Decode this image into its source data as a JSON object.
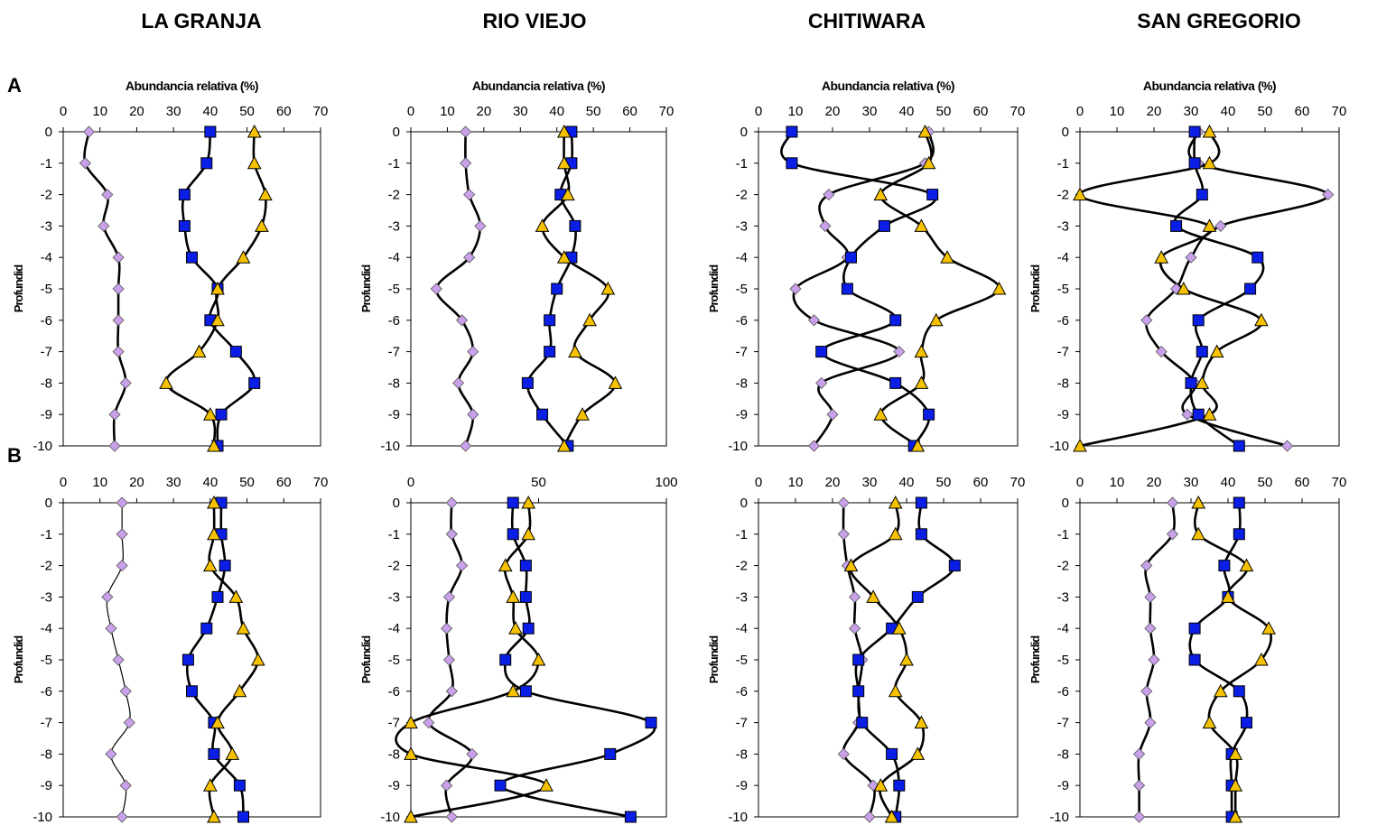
{
  "sites": [
    "LA GRANJA",
    "RIO VIEJO",
    "CHITIWARA",
    "SAN GREGORIO"
  ],
  "row_labels": [
    "A",
    "B"
  ],
  "colors": {
    "diamond": "#c9a0ea",
    "square": "#0a1ee6",
    "triangle": "#f6c200"
  },
  "chart_data": [
    {
      "type": "line",
      "row": "A",
      "site": "LA GRANJA",
      "xlabel": "Abundancia relativa (%)",
      "ylabel": "Profundid",
      "xlim": [
        0,
        70
      ],
      "xticks": [
        0,
        10,
        20,
        30,
        40,
        50,
        60,
        70
      ],
      "ylim": [
        -10,
        0
      ],
      "yticks": [
        0,
        -1,
        -2,
        -3,
        -4,
        -5,
        -6,
        -7,
        -8,
        -9,
        -10
      ],
      "series": [
        {
          "marker": "diamond",
          "x": [
            7,
            6,
            12,
            11,
            15,
            15,
            15,
            15,
            17,
            14,
            14
          ],
          "y": [
            0,
            -1,
            -2,
            -3,
            -4,
            -5,
            -6,
            -7,
            -8,
            -9,
            -10
          ]
        },
        {
          "marker": "square",
          "x": [
            40,
            39,
            33,
            33,
            35,
            42,
            40,
            47,
            52,
            43,
            42
          ],
          "y": [
            0,
            -1,
            -2,
            -3,
            -4,
            -5,
            -6,
            -7,
            -8,
            -9,
            -10
          ]
        },
        {
          "marker": "triangle",
          "x": [
            52,
            52,
            55,
            54,
            49,
            42,
            42,
            37,
            28,
            40,
            41
          ],
          "y": [
            0,
            -1,
            -2,
            -3,
            -4,
            -5,
            -6,
            -7,
            -8,
            -9,
            -10
          ]
        }
      ]
    },
    {
      "type": "line",
      "row": "A",
      "site": "RIO VIEJO",
      "xlabel": "Abundancia relativa (%)",
      "ylabel": "Profundid",
      "xlim": [
        0,
        70
      ],
      "xticks": [
        0,
        10,
        20,
        30,
        40,
        50,
        60,
        70
      ],
      "ylim": [
        -10,
        0
      ],
      "yticks": [
        0,
        -1,
        -2,
        -3,
        -4,
        -5,
        -6,
        -7,
        -8,
        -9,
        -10
      ],
      "series": [
        {
          "marker": "diamond",
          "x": [
            15,
            15,
            16,
            19,
            16,
            7,
            14,
            17,
            13,
            17,
            15
          ],
          "y": [
            0,
            -1,
            -2,
            -3,
            -4,
            -5,
            -6,
            -7,
            -8,
            -9,
            -10
          ]
        },
        {
          "marker": "square",
          "x": [
            44,
            44,
            41,
            45,
            44,
            40,
            38,
            38,
            32,
            36,
            43
          ],
          "y": [
            0,
            -1,
            -2,
            -3,
            -4,
            -5,
            -6,
            -7,
            -8,
            -9,
            -10
          ]
        },
        {
          "marker": "triangle",
          "x": [
            42,
            42,
            43,
            36,
            42,
            54,
            49,
            45,
            56,
            47,
            42
          ],
          "y": [
            0,
            -1,
            -2,
            -3,
            -4,
            -5,
            -6,
            -7,
            -8,
            -9,
            -10
          ]
        }
      ]
    },
    {
      "type": "line",
      "row": "A",
      "site": "CHITIWARA",
      "xlabel": "Abundancia relativa (%)",
      "ylabel": "Profundid",
      "xlim": [
        0,
        70
      ],
      "xticks": [
        0,
        10,
        20,
        30,
        40,
        50,
        60,
        70
      ],
      "ylim": [
        -10,
        0
      ],
      "yticks": [
        0,
        -1,
        -2,
        -3,
        -4,
        -5,
        -6,
        -7,
        -8,
        -9,
        -10
      ],
      "series": [
        {
          "marker": "diamond",
          "x": [
            46,
            45,
            19,
            18,
            24,
            10,
            15,
            38,
            17,
            20,
            15
          ],
          "y": [
            0,
            -1,
            -2,
            -3,
            -4,
            -5,
            -6,
            -7,
            -8,
            -9,
            -10
          ]
        },
        {
          "marker": "square",
          "x": [
            9,
            9,
            47,
            34,
            25,
            24,
            37,
            17,
            37,
            46,
            42
          ],
          "y": [
            0,
            -1,
            -2,
            -3,
            -4,
            -5,
            -6,
            -7,
            -8,
            -9,
            -10
          ]
        },
        {
          "marker": "triangle",
          "x": [
            45,
            46,
            33,
            44,
            51,
            65,
            48,
            44,
            44,
            33,
            43
          ],
          "y": [
            0,
            -1,
            -2,
            -3,
            -4,
            -5,
            -6,
            -7,
            -8,
            -9,
            -10
          ]
        }
      ]
    },
    {
      "type": "line",
      "row": "A",
      "site": "SAN GREGORIO",
      "xlabel": "Abundancia relativa (%)",
      "ylabel": "Profundid",
      "xlim": [
        0,
        70
      ],
      "xticks": [
        0,
        10,
        20,
        30,
        40,
        50,
        60,
        70
      ],
      "ylim": [
        -10,
        0
      ],
      "yticks": [
        0,
        -1,
        -2,
        -3,
        -4,
        -5,
        -6,
        -7,
        -8,
        -9,
        -10
      ],
      "series": [
        {
          "marker": "diamond",
          "x": [
            32,
            32,
            67,
            38,
            30,
            26,
            18,
            22,
            31,
            29,
            56
          ],
          "y": [
            0,
            -1,
            -2,
            -3,
            -4,
            -5,
            -6,
            -7,
            -8,
            -9,
            -10
          ]
        },
        {
          "marker": "square",
          "x": [
            31,
            31,
            33,
            26,
            48,
            46,
            32,
            33,
            30,
            32,
            43
          ],
          "y": [
            0,
            -1,
            -2,
            -3,
            -4,
            -5,
            -6,
            -7,
            -8,
            -9,
            -10
          ]
        },
        {
          "marker": "triangle",
          "x": [
            35,
            35,
            0,
            35,
            22,
            28,
            49,
            37,
            33,
            35,
            0
          ],
          "y": [
            0,
            -1,
            -2,
            -3,
            -4,
            -5,
            -6,
            -7,
            -8,
            -9,
            -10
          ]
        }
      ]
    },
    {
      "type": "line",
      "row": "B",
      "site": "LA GRANJA",
      "xlabel": "",
      "ylabel": "Profundid",
      "xlim": [
        0,
        70
      ],
      "xticks": [
        0,
        10,
        20,
        30,
        40,
        50,
        60,
        70
      ],
      "ylim": [
        -10,
        0
      ],
      "yticks": [
        0,
        -1,
        -2,
        -3,
        -4,
        -5,
        -6,
        -7,
        -8,
        -9,
        -10
      ],
      "series": [
        {
          "marker": "diamond",
          "x": [
            16,
            16,
            16,
            12,
            13,
            15,
            17,
            18,
            13,
            17,
            16
          ],
          "y": [
            0,
            -1,
            -2,
            -3,
            -4,
            -5,
            -6,
            -7,
            -8,
            -9,
            -10
          ]
        },
        {
          "marker": "square",
          "x": [
            43,
            43,
            44,
            42,
            39,
            34,
            35,
            41,
            41,
            48,
            49
          ],
          "y": [
            0,
            -1,
            -2,
            -3,
            -4,
            -5,
            -6,
            -7,
            -8,
            -9,
            -10
          ]
        },
        {
          "marker": "triangle",
          "x": [
            41,
            41,
            40,
            47,
            49,
            53,
            48,
            42,
            46,
            40,
            41
          ],
          "y": [
            0,
            -1,
            -2,
            -3,
            -4,
            -5,
            -6,
            -7,
            -8,
            -9,
            -10
          ]
        }
      ]
    },
    {
      "type": "line",
      "row": "B",
      "site": "RIO VIEJO",
      "xlabel": "",
      "ylabel": "Profundid",
      "xlim": [
        0,
        100
      ],
      "xticks": [
        0,
        50,
        100
      ],
      "ylim": [
        -10,
        0
      ],
      "yticks": [
        0,
        -1,
        -2,
        -3,
        -4,
        -5,
        -6,
        -7,
        -8,
        -9,
        -10
      ],
      "series": [
        {
          "marker": "diamond",
          "x": [
            16,
            16,
            20,
            15,
            14,
            15,
            16,
            7,
            24,
            14,
            16
          ],
          "y": [
            0,
            -1,
            -2,
            -3,
            -4,
            -5,
            -6,
            -7,
            -8,
            -9,
            -10
          ]
        },
        {
          "marker": "square",
          "x": [
            40,
            40,
            45,
            45,
            46,
            37,
            45,
            94,
            78,
            35,
            86
          ],
          "y": [
            0,
            -1,
            -2,
            -3,
            -4,
            -5,
            -6,
            -7,
            -8,
            -9,
            -10
          ]
        },
        {
          "marker": "triangle",
          "x": [
            46,
            46,
            37,
            40,
            41,
            50,
            40,
            0,
            0,
            53,
            0
          ],
          "y": [
            0,
            -1,
            -2,
            -3,
            -4,
            -5,
            -6,
            -7,
            -8,
            -9,
            -10
          ]
        }
      ]
    },
    {
      "type": "line",
      "row": "B",
      "site": "CHITIWARA",
      "xlabel": "",
      "ylabel": "Profundid",
      "xlim": [
        0,
        70
      ],
      "xticks": [
        0,
        10,
        20,
        30,
        40,
        50,
        60,
        70
      ],
      "ylim": [
        -10,
        0
      ],
      "yticks": [
        0,
        -1,
        -2,
        -3,
        -4,
        -5,
        -6,
        -7,
        -8,
        -9,
        -10
      ],
      "series": [
        {
          "marker": "diamond",
          "x": [
            23,
            23,
            24,
            26,
            26,
            28,
            27,
            27,
            23,
            31,
            30
          ],
          "y": [
            0,
            -1,
            -2,
            -3,
            -4,
            -5,
            -6,
            -7,
            -8,
            -9,
            -10
          ]
        },
        {
          "marker": "square",
          "x": [
            44,
            44,
            53,
            43,
            36,
            27,
            27,
            28,
            36,
            38,
            37
          ],
          "y": [
            0,
            -1,
            -2,
            -3,
            -4,
            -5,
            -6,
            -7,
            -8,
            -9,
            -10
          ]
        },
        {
          "marker": "triangle",
          "x": [
            37,
            37,
            25,
            31,
            38,
            40,
            37,
            44,
            43,
            33,
            36
          ],
          "y": [
            0,
            -1,
            -2,
            -3,
            -4,
            -5,
            -6,
            -7,
            -8,
            -9,
            -10
          ]
        }
      ]
    },
    {
      "type": "line",
      "row": "B",
      "site": "SAN GREGORIO",
      "xlabel": "",
      "ylabel": "Profundid",
      "xlim": [
        0,
        70
      ],
      "xticks": [
        0,
        10,
        20,
        30,
        40,
        50,
        60,
        70
      ],
      "ylim": [
        -10,
        0
      ],
      "yticks": [
        0,
        -1,
        -2,
        -3,
        -4,
        -5,
        -6,
        -7,
        -8,
        -9,
        -10
      ],
      "series": [
        {
          "marker": "diamond",
          "x": [
            25,
            25,
            18,
            19,
            19,
            20,
            18,
            19,
            16,
            16,
            16
          ],
          "y": [
            0,
            -1,
            -2,
            -3,
            -4,
            -5,
            -6,
            -7,
            -8,
            -9,
            -10
          ]
        },
        {
          "marker": "square",
          "x": [
            43,
            43,
            39,
            40,
            31,
            31,
            43,
            45,
            41,
            41,
            41
          ],
          "y": [
            0,
            -1,
            -2,
            -3,
            -4,
            -5,
            -6,
            -7,
            -8,
            -9,
            -10
          ]
        },
        {
          "marker": "triangle",
          "x": [
            32,
            32,
            45,
            40,
            51,
            49,
            38,
            35,
            42,
            42,
            42
          ],
          "y": [
            0,
            -1,
            -2,
            -3,
            -4,
            -5,
            -6,
            -7,
            -8,
            -9,
            -10
          ]
        }
      ]
    }
  ]
}
